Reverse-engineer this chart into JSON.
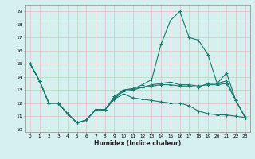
{
  "title": "",
  "xlabel": "Humidex (Indice chaleur)",
  "ylabel": "",
  "xlim": [
    -0.5,
    23.5
  ],
  "ylim": [
    9.8,
    19.5
  ],
  "yticks": [
    10,
    11,
    12,
    13,
    14,
    15,
    16,
    17,
    18,
    19
  ],
  "xticks": [
    0,
    1,
    2,
    3,
    4,
    5,
    6,
    7,
    8,
    9,
    10,
    11,
    12,
    13,
    14,
    15,
    16,
    17,
    18,
    19,
    20,
    21,
    22,
    23
  ],
  "bg_color": "#d6f0f0",
  "grid_color": "#e8bbbb",
  "line_color": "#1a7a6e",
  "series1_x": [
    0,
    1,
    2,
    3,
    4,
    5,
    6,
    7,
    8,
    9,
    10,
    11,
    12,
    13,
    14,
    15,
    16,
    17,
    18,
    19,
    20,
    21,
    22,
    23
  ],
  "series1_y": [
    15.0,
    13.7,
    12.0,
    12.0,
    11.2,
    10.5,
    10.7,
    11.5,
    11.5,
    12.3,
    13.0,
    13.1,
    13.2,
    13.3,
    13.4,
    13.4,
    13.3,
    13.3,
    13.2,
    13.5,
    13.5,
    13.7,
    12.2,
    10.9
  ],
  "series2_x": [
    0,
    1,
    2,
    3,
    4,
    5,
    6,
    7,
    8,
    9,
    10,
    11,
    12,
    13,
    14,
    15,
    16,
    17,
    18,
    19,
    20,
    21,
    22,
    23
  ],
  "series2_y": [
    15.0,
    13.7,
    12.0,
    12.0,
    11.2,
    10.5,
    10.7,
    11.5,
    11.5,
    12.5,
    13.0,
    13.1,
    13.4,
    13.8,
    16.5,
    18.3,
    19.0,
    17.0,
    16.8,
    15.7,
    13.5,
    14.3,
    12.2,
    10.9
  ],
  "series3_x": [
    0,
    1,
    2,
    3,
    4,
    5,
    6,
    7,
    8,
    9,
    10,
    11,
    12,
    13,
    14,
    15,
    16,
    17,
    18,
    19,
    20,
    21,
    22,
    23
  ],
  "series3_y": [
    15.0,
    13.7,
    12.0,
    12.0,
    11.2,
    10.5,
    10.7,
    11.5,
    11.5,
    12.4,
    12.9,
    13.0,
    13.2,
    13.4,
    13.5,
    13.6,
    13.4,
    13.4,
    13.3,
    13.4,
    13.4,
    13.5,
    12.2,
    10.9
  ],
  "series4_x": [
    0,
    1,
    2,
    3,
    4,
    5,
    6,
    7,
    8,
    9,
    10,
    11,
    12,
    13,
    14,
    15,
    16,
    17,
    18,
    19,
    20,
    21,
    22,
    23
  ],
  "series4_y": [
    15.0,
    13.7,
    12.0,
    12.0,
    11.2,
    10.5,
    10.7,
    11.5,
    11.5,
    12.3,
    12.7,
    12.4,
    12.3,
    12.2,
    12.1,
    12.0,
    12.0,
    11.8,
    11.4,
    11.2,
    11.1,
    11.1,
    11.0,
    10.9
  ]
}
